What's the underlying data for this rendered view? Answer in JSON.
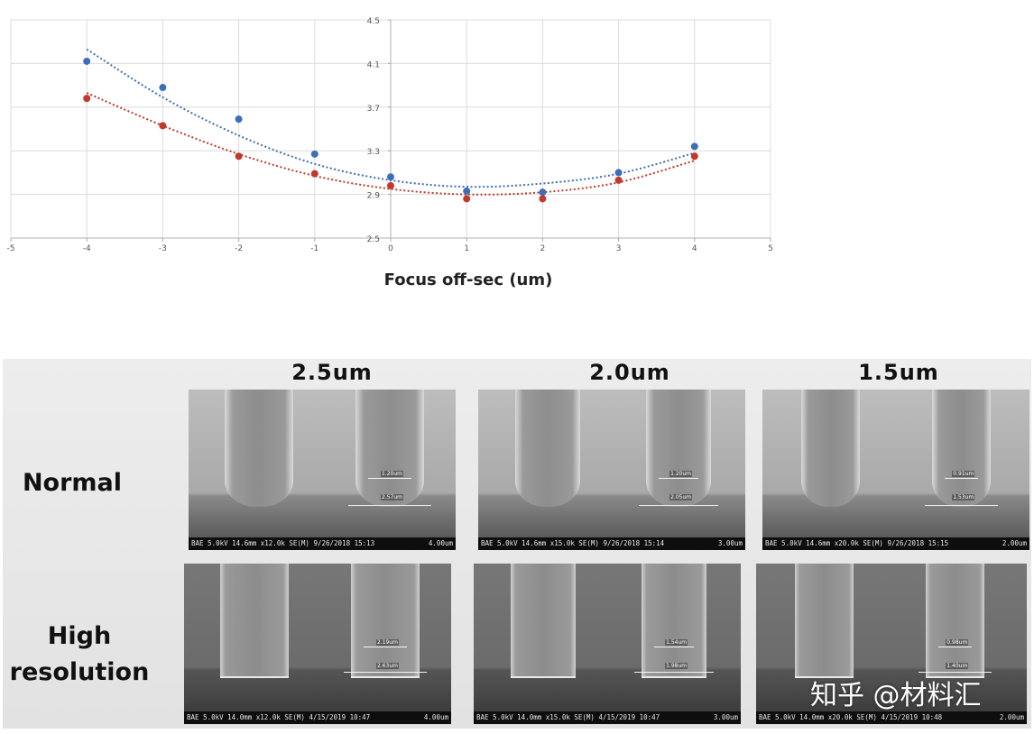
{
  "chart_data": {
    "type": "scatter",
    "title": "",
    "xlabel": "Focus off-sec (um)",
    "ylabel": "",
    "xlim": [
      -5,
      5
    ],
    "ylim": [
      2.5,
      4.5
    ],
    "x_ticks": [
      "-5",
      "-4",
      "-3",
      "-2",
      "-1",
      "0",
      "1",
      "2",
      "3",
      "4",
      "5"
    ],
    "y_ticks": [
      "2.5",
      "2.9",
      "3.3",
      "3.7",
      "4.1",
      "4.5"
    ],
    "grid": true,
    "legend": "none",
    "series": [
      {
        "color": "#3d6fb6",
        "x": [
          -4,
          -3,
          -2,
          -1,
          0,
          1,
          2,
          3,
          4
        ],
        "y": [
          4.12,
          3.88,
          3.59,
          3.27,
          3.06,
          2.93,
          2.92,
          3.1,
          3.34
        ],
        "trendline": "polynomial",
        "trend_y": [
          4.23,
          3.79,
          3.44,
          3.18,
          3.03,
          2.97,
          3.0,
          3.09,
          3.28
        ]
      },
      {
        "color": "#c0392b",
        "x": [
          -4,
          -3,
          -2,
          -1,
          0,
          1,
          2,
          3,
          4
        ],
        "y": [
          3.78,
          3.53,
          3.25,
          3.09,
          2.98,
          2.86,
          2.86,
          3.03,
          3.25
        ],
        "trendline": "polynomial",
        "trend_y": [
          3.83,
          3.53,
          3.27,
          3.07,
          2.95,
          2.9,
          2.92,
          3.01,
          3.21
        ]
      }
    ]
  },
  "sem_figure": {
    "columns": [
      "2.5um",
      "2.0um",
      "1.5um"
    ],
    "rows": [
      "Normal",
      "High\nresolution"
    ],
    "images": [
      {
        "info": "BAE 5.0kV 14.6mm x12.0k SE(M) 9/26/2018 15:13",
        "scale": "4.00um",
        "meas_top": "1.20um",
        "meas_bottom": "2.57um"
      },
      {
        "info": "BAE 5.0kV 14.6mm x15.0k SE(M) 9/26/2018 15:14",
        "scale": "3.00um",
        "meas_top": "1.20um",
        "meas_bottom": "2.05um"
      },
      {
        "info": "BAE 5.0kV 14.6mm x20.0k SE(M) 9/26/2018 15:15",
        "scale": "2.00um",
        "meas_top": "0.91um",
        "meas_bottom": "1.53um"
      },
      {
        "info": "BAE 5.0kV 14.0mm x12.0k SE(M) 4/15/2019 10:47",
        "scale": "4.00um",
        "meas_top": "2.19um",
        "meas_bottom": "2.63um"
      },
      {
        "info": "BAE 5.0kV 14.0mm x15.0k SE(M) 4/15/2019 10:47",
        "scale": "3.00um",
        "meas_top": "1.54um",
        "meas_bottom": "1.98um"
      },
      {
        "info": "BAE 5.0kV 14.0mm x20.0k SE(M) 4/15/2019 10:48",
        "scale": "2.00um",
        "meas_top": "0.98um",
        "meas_bottom": "1.40um"
      }
    ]
  },
  "watermark": "知乎 @材料汇"
}
